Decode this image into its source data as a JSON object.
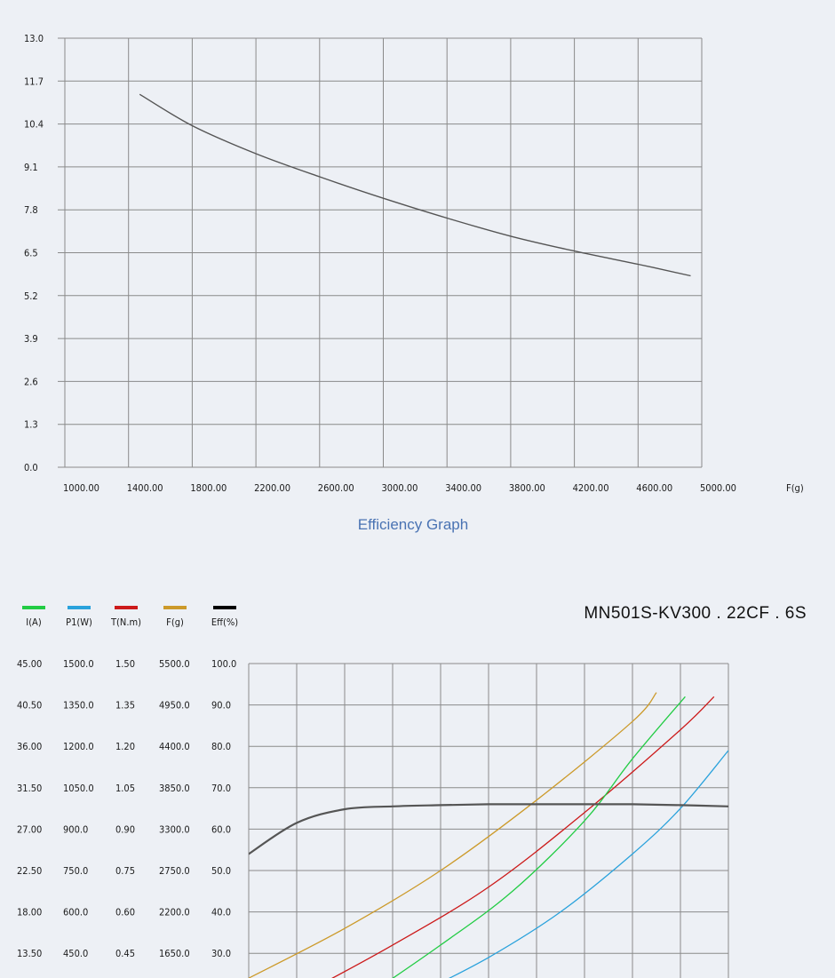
{
  "chart_data": [
    {
      "type": "line",
      "title": "",
      "caption": "Efficiency Graph",
      "xlabel": "F(g)",
      "ylabel": "",
      "x_ticks": [
        "1000.00",
        "1400.00",
        "1800.00",
        "2200.00",
        "2600.00",
        "3000.00",
        "3400.00",
        "3800.00",
        "4200.00",
        "4600.00",
        "5000.00"
      ],
      "y_ticks": [
        "0.0",
        "1.3",
        "2.6",
        "3.9",
        "5.2",
        "6.5",
        "7.8",
        "9.1",
        "10.4",
        "11.7",
        "13.0"
      ],
      "xlim": [
        1000,
        5000
      ],
      "ylim": [
        0,
        13
      ],
      "grid": true,
      "series": [
        {
          "color": "#555555",
          "x": [
            1470,
            1800,
            2200,
            2600,
            3000,
            3400,
            3800,
            4200,
            4600,
            4930
          ],
          "y": [
            11.3,
            10.35,
            9.5,
            8.8,
            8.15,
            7.55,
            7.0,
            6.55,
            6.15,
            5.8
          ]
        }
      ]
    },
    {
      "type": "line",
      "title": "MN501S-KV300 . 22CF . 6S",
      "grid": true,
      "legend_position": "top-left",
      "legend": [
        {
          "label": "I(A)",
          "color": "#22cc44"
        },
        {
          "label": "P1(W)",
          "color": "#2aa2dc"
        },
        {
          "label": "T(N.m)",
          "color": "#cc1a1a"
        },
        {
          "label": "F(g)",
          "color": "#cc9a2a"
        },
        {
          "label": "Eff(%)",
          "color": "#000000"
        }
      ],
      "y_axes": [
        {
          "name": "I(A)",
          "ticks": [
            "45.00",
            "40.50",
            "36.00",
            "31.50",
            "27.00",
            "22.50",
            "18.00",
            "13.50"
          ]
        },
        {
          "name": "P1(W)",
          "ticks": [
            "1500.0",
            "1350.0",
            "1200.0",
            "1050.0",
            "900.0",
            "750.0",
            "600.0",
            "450.0"
          ]
        },
        {
          "name": "T(N.m)",
          "ticks": [
            "1.50",
            "1.35",
            "1.20",
            "1.05",
            "0.90",
            "0.75",
            "0.60",
            "0.45"
          ]
        },
        {
          "name": "F(g)",
          "ticks": [
            "5500.0",
            "4950.0",
            "4400.0",
            "3850.0",
            "3300.0",
            "2750.0",
            "2200.0",
            "1650.0"
          ]
        },
        {
          "name": "Eff(%)",
          "ticks": [
            "100.0",
            "90.0",
            "80.0",
            "70.0",
            "60.0",
            "50.0",
            "40.0",
            "30.0"
          ]
        }
      ],
      "y_ref_axis": "Eff(%)",
      "y_ref_lim": [
        0,
        100
      ],
      "x_lim": [
        0,
        10
      ],
      "series": [
        {
          "color": "#cc9a2a",
          "x": [
            0,
            2,
            4,
            6,
            8,
            8.5
          ],
          "y": [
            24,
            36,
            50,
            67,
            86,
            93
          ],
          "units": "F(g) mapped to Eff(%) scale"
        },
        {
          "color": "#cc1a1a",
          "x": [
            1.1,
            3,
            5,
            7,
            9,
            9.7
          ],
          "y": [
            20,
            32,
            46,
            64,
            84,
            92
          ],
          "units": "T(N.m) mapped to Eff(%) scale"
        },
        {
          "color": "#22cc44",
          "x": [
            2.5,
            4,
            5.5,
            7,
            8,
            9.1
          ],
          "y": [
            20,
            32,
            45,
            62,
            77,
            92
          ],
          "units": "I(A) mapped to Eff(%) scale"
        },
        {
          "color": "#2aa2dc",
          "x": [
            3.5,
            5,
            6.5,
            8,
            9,
            10
          ],
          "y": [
            20,
            29,
            40,
            54,
            65,
            79
          ],
          "units": "P1(W) mapped to Eff(%) scale"
        },
        {
          "color": "#555555",
          "x": [
            0,
            1,
            2,
            3,
            4,
            5,
            6,
            7,
            8,
            9,
            10
          ],
          "y": [
            54,
            61.5,
            64.8,
            65.5,
            65.8,
            66.0,
            66.0,
            66.0,
            66.0,
            65.8,
            65.5
          ],
          "units": "Eff(%)"
        }
      ]
    }
  ]
}
